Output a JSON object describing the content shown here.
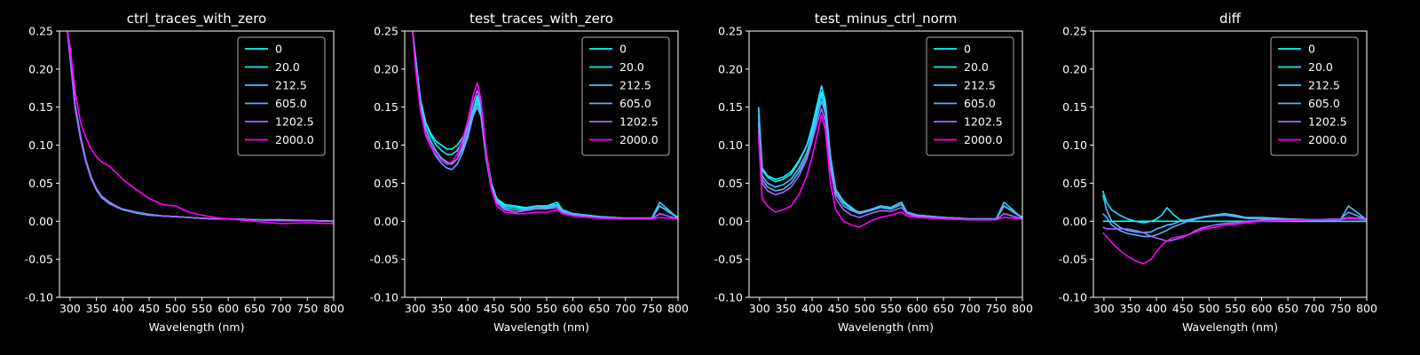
{
  "chart_data": [
    {
      "type": "line",
      "title": "ctrl_traces_with_zero",
      "xlabel": "Wavelength (nm)",
      "ylabel": "",
      "xlim": [
        280,
        800
      ],
      "ylim": [
        -0.1,
        0.25
      ],
      "xticks": [
        300,
        350,
        400,
        450,
        500,
        550,
        600,
        650,
        700,
        750,
        800
      ],
      "yticks": [
        -0.1,
        -0.05,
        0.0,
        0.05,
        0.1,
        0.15,
        0.2,
        0.25
      ],
      "legend_position": "top-right",
      "x": [
        295,
        300,
        310,
        320,
        330,
        340,
        350,
        360,
        375,
        390,
        400,
        425,
        450,
        475,
        500,
        525,
        550,
        575,
        600,
        650,
        700,
        750,
        800
      ],
      "series": [
        {
          "name": "0",
          "color": "#00ffff",
          "values": [
            0.25,
            0.22,
            0.15,
            0.11,
            0.08,
            0.058,
            0.042,
            0.032,
            0.024,
            0.018,
            0.016,
            0.012,
            0.009,
            0.007,
            0.006,
            0.005,
            0.004,
            0.003,
            0.003,
            0.002,
            0.001,
            0.001,
            0.0
          ]
        },
        {
          "name": "20.0",
          "color": "#1ae5ff",
          "values": [
            0.25,
            0.215,
            0.148,
            0.108,
            0.078,
            0.056,
            0.041,
            0.031,
            0.023,
            0.018,
            0.015,
            0.011,
            0.008,
            0.007,
            0.006,
            0.005,
            0.004,
            0.003,
            0.003,
            0.002,
            0.001,
            0.001,
            0.0
          ]
        },
        {
          "name": "212.5",
          "color": "#3ccaff",
          "values": [
            0.25,
            0.218,
            0.15,
            0.11,
            0.08,
            0.057,
            0.042,
            0.032,
            0.024,
            0.018,
            0.016,
            0.012,
            0.009,
            0.007,
            0.006,
            0.005,
            0.004,
            0.003,
            0.003,
            0.002,
            0.001,
            0.001,
            0.0
          ]
        },
        {
          "name": "605.0",
          "color": "#66aaff",
          "values": [
            0.25,
            0.22,
            0.152,
            0.112,
            0.081,
            0.058,
            0.043,
            0.033,
            0.025,
            0.019,
            0.016,
            0.012,
            0.009,
            0.007,
            0.006,
            0.005,
            0.004,
            0.003,
            0.003,
            0.002,
            0.002,
            0.001,
            0.0
          ]
        },
        {
          "name": "1202.5",
          "color": "#aa66ff",
          "values": [
            0.25,
            0.216,
            0.148,
            0.108,
            0.079,
            0.057,
            0.042,
            0.032,
            0.024,
            0.018,
            0.016,
            0.012,
            0.009,
            0.007,
            0.006,
            0.005,
            0.004,
            0.003,
            0.003,
            0.002,
            0.001,
            0.001,
            0.0
          ]
        },
        {
          "name": "2000.0",
          "color": "#ff00ff",
          "values": [
            0.25,
            0.23,
            0.17,
            0.13,
            0.11,
            0.095,
            0.085,
            0.078,
            0.072,
            0.062,
            0.055,
            0.042,
            0.03,
            0.022,
            0.02,
            0.012,
            0.008,
            0.005,
            0.003,
            0.0,
            -0.003,
            -0.002,
            -0.003
          ]
        }
      ]
    },
    {
      "type": "line",
      "title": "test_traces_with_zero",
      "xlabel": "Wavelength (nm)",
      "ylabel": "",
      "xlim": [
        280,
        800
      ],
      "ylim": [
        -0.1,
        0.25
      ],
      "xticks": [
        300,
        350,
        400,
        450,
        500,
        550,
        600,
        650,
        700,
        750,
        800
      ],
      "yticks": [
        -0.1,
        -0.05,
        0.0,
        0.05,
        0.1,
        0.15,
        0.2,
        0.25
      ],
      "legend_position": "top-right",
      "x": [
        295,
        300,
        310,
        320,
        330,
        340,
        350,
        360,
        370,
        380,
        390,
        400,
        410,
        418,
        425,
        435,
        445,
        455,
        470,
        490,
        510,
        530,
        550,
        570,
        580,
        600,
        650,
        700,
        750,
        765,
        800
      ],
      "series": [
        {
          "name": "0",
          "color": "#00ffff",
          "values": [
            0.25,
            0.22,
            0.16,
            0.13,
            0.115,
            0.105,
            0.1,
            0.095,
            0.095,
            0.1,
            0.11,
            0.125,
            0.145,
            0.165,
            0.15,
            0.09,
            0.05,
            0.03,
            0.022,
            0.02,
            0.018,
            0.02,
            0.02,
            0.025,
            0.015,
            0.01,
            0.006,
            0.004,
            0.004,
            0.02,
            0.005
          ]
        },
        {
          "name": "20.0",
          "color": "#1ae5ff",
          "values": [
            0.25,
            0.22,
            0.158,
            0.128,
            0.112,
            0.1,
            0.093,
            0.088,
            0.088,
            0.093,
            0.105,
            0.122,
            0.145,
            0.16,
            0.145,
            0.088,
            0.048,
            0.028,
            0.02,
            0.018,
            0.017,
            0.02,
            0.02,
            0.022,
            0.014,
            0.01,
            0.006,
            0.004,
            0.004,
            0.02,
            0.005
          ]
        },
        {
          "name": "212.5",
          "color": "#3ccaff",
          "values": [
            0.25,
            0.22,
            0.155,
            0.122,
            0.105,
            0.092,
            0.083,
            0.078,
            0.076,
            0.082,
            0.095,
            0.115,
            0.14,
            0.155,
            0.142,
            0.085,
            0.045,
            0.026,
            0.018,
            0.015,
            0.016,
            0.02,
            0.018,
            0.022,
            0.013,
            0.009,
            0.005,
            0.003,
            0.004,
            0.025,
            0.004
          ]
        },
        {
          "name": "605.0",
          "color": "#66aaff",
          "values": [
            0.25,
            0.215,
            0.15,
            0.115,
            0.098,
            0.085,
            0.076,
            0.07,
            0.068,
            0.075,
            0.09,
            0.11,
            0.138,
            0.15,
            0.138,
            0.082,
            0.042,
            0.024,
            0.016,
            0.012,
            0.015,
            0.018,
            0.017,
            0.02,
            0.012,
            0.008,
            0.005,
            0.003,
            0.003,
            0.02,
            0.004
          ]
        },
        {
          "name": "1202.5",
          "color": "#aa66ff",
          "values": [
            0.25,
            0.21,
            0.148,
            0.115,
            0.1,
            0.088,
            0.08,
            0.075,
            0.075,
            0.082,
            0.1,
            0.122,
            0.155,
            0.172,
            0.155,
            0.09,
            0.045,
            0.024,
            0.015,
            0.012,
            0.014,
            0.016,
            0.016,
            0.018,
            0.011,
            0.008,
            0.005,
            0.003,
            0.003,
            0.01,
            0.003
          ]
        },
        {
          "name": "2000.0",
          "color": "#ff00ff",
          "values": [
            0.25,
            0.205,
            0.145,
            0.112,
            0.098,
            0.088,
            0.08,
            0.076,
            0.078,
            0.088,
            0.108,
            0.132,
            0.165,
            0.182,
            0.16,
            0.09,
            0.042,
            0.02,
            0.012,
            0.01,
            0.01,
            0.012,
            0.012,
            0.015,
            0.01,
            0.007,
            0.004,
            0.003,
            0.003,
            0.005,
            0.003
          ]
        }
      ]
    },
    {
      "type": "line",
      "title": "test_minus_ctrl_norm",
      "xlabel": "Wavelength (nm)",
      "ylabel": "",
      "xlim": [
        280,
        800
      ],
      "ylim": [
        -0.1,
        0.25
      ],
      "xticks": [
        300,
        350,
        400,
        450,
        500,
        550,
        600,
        650,
        700,
        750,
        800
      ],
      "yticks": [
        -0.1,
        -0.05,
        0.0,
        0.05,
        0.1,
        0.15,
        0.2,
        0.25
      ],
      "legend_position": "top-right",
      "x": [
        298,
        305,
        315,
        330,
        345,
        360,
        375,
        390,
        400,
        410,
        418,
        425,
        435,
        445,
        460,
        475,
        490,
        510,
        530,
        550,
        570,
        580,
        600,
        650,
        700,
        750,
        765,
        800
      ],
      "series": [
        {
          "name": "0",
          "color": "#00ffff",
          "values": [
            0.15,
            0.07,
            0.06,
            0.055,
            0.058,
            0.065,
            0.08,
            0.1,
            0.12,
            0.15,
            0.17,
            0.15,
            0.08,
            0.04,
            0.025,
            0.018,
            0.01,
            0.015,
            0.02,
            0.018,
            0.025,
            0.012,
            0.008,
            0.005,
            0.003,
            0.003,
            0.02,
            0.005
          ]
        },
        {
          "name": "20.0",
          "color": "#1ae5ff",
          "values": [
            0.15,
            0.068,
            0.058,
            0.052,
            0.055,
            0.062,
            0.078,
            0.1,
            0.125,
            0.155,
            0.178,
            0.158,
            0.085,
            0.042,
            0.026,
            0.018,
            0.01,
            0.015,
            0.02,
            0.018,
            0.025,
            0.012,
            0.008,
            0.005,
            0.003,
            0.003,
            0.02,
            0.005
          ]
        },
        {
          "name": "212.5",
          "color": "#3ccaff",
          "values": [
            0.14,
            0.06,
            0.05,
            0.045,
            0.048,
            0.055,
            0.07,
            0.09,
            0.115,
            0.145,
            0.165,
            0.148,
            0.08,
            0.04,
            0.024,
            0.016,
            0.012,
            0.015,
            0.02,
            0.018,
            0.025,
            0.012,
            0.008,
            0.005,
            0.003,
            0.003,
            0.025,
            0.004
          ]
        },
        {
          "name": "605.0",
          "color": "#66aaff",
          "values": [
            0.13,
            0.055,
            0.045,
            0.04,
            0.042,
            0.05,
            0.065,
            0.085,
            0.11,
            0.138,
            0.158,
            0.142,
            0.075,
            0.036,
            0.02,
            0.014,
            0.01,
            0.014,
            0.018,
            0.016,
            0.022,
            0.012,
            0.008,
            0.005,
            0.003,
            0.003,
            0.02,
            0.004
          ]
        },
        {
          "name": "1202.5",
          "color": "#aa66ff",
          "values": [
            0.12,
            0.05,
            0.04,
            0.035,
            0.038,
            0.045,
            0.06,
            0.082,
            0.105,
            0.13,
            0.148,
            0.132,
            0.068,
            0.03,
            0.015,
            0.008,
            0.005,
            0.01,
            0.014,
            0.013,
            0.018,
            0.01,
            0.006,
            0.004,
            0.002,
            0.002,
            0.01,
            0.003
          ]
        },
        {
          "name": "2000.0",
          "color": "#ff00ff",
          "values": [
            0.11,
            0.03,
            0.02,
            0.012,
            0.015,
            0.02,
            0.035,
            0.06,
            0.085,
            0.115,
            0.14,
            0.12,
            0.05,
            0.015,
            0.0,
            -0.005,
            -0.008,
            0.0,
            0.005,
            0.008,
            0.012,
            0.007,
            0.005,
            0.003,
            0.002,
            0.002,
            0.005,
            0.003
          ]
        }
      ]
    },
    {
      "type": "line",
      "title": "diff",
      "xlabel": "Wavelength (nm)",
      "ylabel": "",
      "xlim": [
        280,
        800
      ],
      "ylim": [
        -0.1,
        0.25
      ],
      "xticks": [
        300,
        350,
        400,
        450,
        500,
        550,
        600,
        650,
        700,
        750,
        800
      ],
      "yticks": [
        -0.1,
        -0.05,
        0.0,
        0.05,
        0.1,
        0.15,
        0.2,
        0.25
      ],
      "legend_position": "top-right",
      "x": [
        298,
        305,
        315,
        330,
        345,
        360,
        375,
        390,
        400,
        410,
        420,
        430,
        445,
        460,
        475,
        490,
        510,
        530,
        550,
        570,
        600,
        650,
        700,
        750,
        765,
        800
      ],
      "series": [
        {
          "name": "0",
          "color": "#00ffff",
          "values": [
            0.0,
            0.0,
            0.0,
            0.0,
            0.0,
            0.0,
            0.0,
            0.0,
            0.0,
            0.0,
            0.0,
            0.0,
            0.0,
            0.0,
            0.0,
            0.0,
            0.0,
            0.0,
            0.0,
            0.0,
            0.0,
            0.0,
            0.0,
            0.0,
            0.0,
            0.0
          ]
        },
        {
          "name": "20.0",
          "color": "#1ae5ff",
          "values": [
            0.04,
            0.025,
            0.015,
            0.008,
            0.003,
            0.0,
            -0.002,
            0.0,
            0.003,
            0.008,
            0.018,
            0.01,
            0.002,
            0.0,
            0.0,
            0.0,
            0.0,
            0.0,
            0.0,
            0.0,
            0.0,
            0.0,
            0.0,
            0.0,
            0.0,
            0.0
          ]
        },
        {
          "name": "212.5",
          "color": "#3ccaff",
          "values": [
            0.035,
            0.015,
            0.0,
            -0.008,
            -0.012,
            -0.014,
            -0.015,
            -0.014,
            -0.01,
            -0.008,
            -0.005,
            -0.004,
            0.0,
            0.002,
            0.004,
            0.006,
            0.008,
            0.01,
            0.008,
            0.005,
            0.005,
            0.003,
            0.002,
            0.002,
            0.02,
            0.002
          ]
        },
        {
          "name": "605.0",
          "color": "#66aaff",
          "values": [
            0.01,
            0.005,
            -0.005,
            -0.012,
            -0.016,
            -0.018,
            -0.02,
            -0.02,
            -0.018,
            -0.015,
            -0.012,
            -0.008,
            -0.004,
            0.0,
            0.003,
            0.005,
            0.007,
            0.008,
            0.006,
            0.004,
            0.003,
            0.002,
            0.002,
            0.003,
            0.012,
            0.002
          ]
        },
        {
          "name": "1202.5",
          "color": "#aa66ff",
          "values": [
            -0.008,
            -0.01,
            -0.01,
            -0.01,
            -0.01,
            -0.012,
            -0.015,
            -0.02,
            -0.022,
            -0.024,
            -0.026,
            -0.025,
            -0.022,
            -0.018,
            -0.012,
            -0.008,
            -0.005,
            -0.003,
            -0.002,
            0.0,
            0.001,
            0.002,
            0.002,
            0.003,
            0.005,
            0.003
          ]
        },
        {
          "name": "2000.0",
          "color": "#ff00ff",
          "values": [
            -0.015,
            -0.02,
            -0.028,
            -0.038,
            -0.046,
            -0.052,
            -0.056,
            -0.05,
            -0.04,
            -0.032,
            -0.026,
            -0.022,
            -0.02,
            -0.018,
            -0.014,
            -0.01,
            -0.008,
            -0.005,
            -0.004,
            -0.002,
            0.0,
            0.001,
            0.002,
            0.002,
            0.004,
            0.002
          ]
        }
      ]
    }
  ]
}
